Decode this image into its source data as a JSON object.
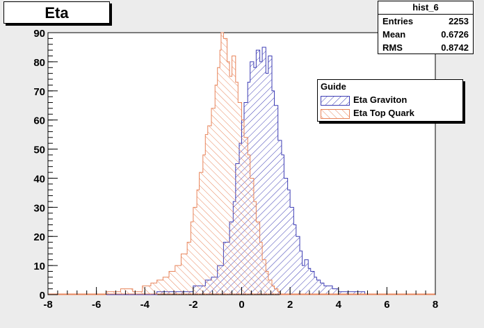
{
  "chart_data": {
    "type": "histogram",
    "title": "Eta",
    "xlim": [
      -8,
      8
    ],
    "ylim": [
      0,
      90
    ],
    "x_ticks": [
      -8,
      -6,
      -4,
      -2,
      0,
      2,
      4,
      6,
      8
    ],
    "y_ticks": [
      0,
      10,
      20,
      30,
      40,
      50,
      60,
      70,
      80,
      90
    ],
    "grid": false,
    "stats": {
      "name": "hist_6",
      "entries_label": "Entries",
      "entries": "2253",
      "mean_label": "Mean",
      "mean": "0.6726",
      "rms_label": "RMS",
      "rms": "0.8742"
    },
    "legend": {
      "title": "Guide",
      "placement": "top-right"
    },
    "series": [
      {
        "name": "Eta Graviton",
        "color": "#3c3cb4",
        "points": [
          [
            -3.5,
            1
          ],
          [
            -3,
            1
          ],
          [
            -2.5,
            1
          ],
          [
            -2,
            3
          ],
          [
            -1.5,
            5
          ],
          [
            -1.25,
            6
          ],
          [
            -1,
            10
          ],
          [
            -0.75,
            18
          ],
          [
            -0.5,
            25
          ],
          [
            -0.35,
            32
          ],
          [
            -0.25,
            45
          ],
          [
            -0.1,
            52
          ],
          [
            0,
            60
          ],
          [
            0.1,
            66
          ],
          [
            0.25,
            73
          ],
          [
            0.35,
            80
          ],
          [
            0.5,
            78
          ],
          [
            0.6,
            84
          ],
          [
            0.75,
            80
          ],
          [
            0.85,
            85
          ],
          [
            1,
            76
          ],
          [
            1.1,
            82
          ],
          [
            1.25,
            70
          ],
          [
            1.35,
            65
          ],
          [
            1.5,
            53
          ],
          [
            1.65,
            48
          ],
          [
            1.75,
            40
          ],
          [
            1.9,
            36
          ],
          [
            2,
            30
          ],
          [
            2.15,
            24
          ],
          [
            2.25,
            20
          ],
          [
            2.4,
            15
          ],
          [
            2.5,
            10
          ],
          [
            2.6,
            12
          ],
          [
            2.75,
            9
          ],
          [
            2.85,
            8
          ],
          [
            3,
            6
          ],
          [
            3.1,
            5
          ],
          [
            3.25,
            4
          ],
          [
            3.4,
            3
          ],
          [
            3.5,
            3
          ],
          [
            3.75,
            2
          ],
          [
            4,
            1
          ],
          [
            4.25,
            1
          ],
          [
            4.5,
            1
          ],
          [
            5,
            1
          ]
        ]
      },
      {
        "name": "Eta Top Quark",
        "color": "#e8845a",
        "points": [
          [
            -5.6,
            1
          ],
          [
            -5,
            2
          ],
          [
            -4.5,
            1
          ],
          [
            -4.1,
            3
          ],
          [
            -3.9,
            3
          ],
          [
            -3.75,
            4
          ],
          [
            -3.5,
            5
          ],
          [
            -3.25,
            6
          ],
          [
            -3,
            8
          ],
          [
            -2.75,
            10
          ],
          [
            -2.5,
            14
          ],
          [
            -2.25,
            18
          ],
          [
            -2.1,
            25
          ],
          [
            -2,
            30
          ],
          [
            -1.85,
            36
          ],
          [
            -1.75,
            42
          ],
          [
            -1.6,
            48
          ],
          [
            -1.5,
            55
          ],
          [
            -1.4,
            58
          ],
          [
            -1.25,
            64
          ],
          [
            -1.1,
            72
          ],
          [
            -1,
            78
          ],
          [
            -0.9,
            84
          ],
          [
            -0.85,
            90
          ],
          [
            -0.75,
            88
          ],
          [
            -0.6,
            80
          ],
          [
            -0.5,
            75
          ],
          [
            -0.4,
            82
          ],
          [
            -0.25,
            73
          ],
          [
            -0.15,
            66
          ],
          [
            0,
            60
          ],
          [
            0.1,
            54
          ],
          [
            0.25,
            48
          ],
          [
            0.35,
            40
          ],
          [
            0.5,
            32
          ],
          [
            0.6,
            25
          ],
          [
            0.75,
            18
          ],
          [
            0.85,
            12
          ],
          [
            1,
            8
          ],
          [
            1.1,
            5
          ],
          [
            1.25,
            3
          ],
          [
            1.35,
            2
          ],
          [
            1.5,
            1
          ]
        ]
      }
    ]
  }
}
